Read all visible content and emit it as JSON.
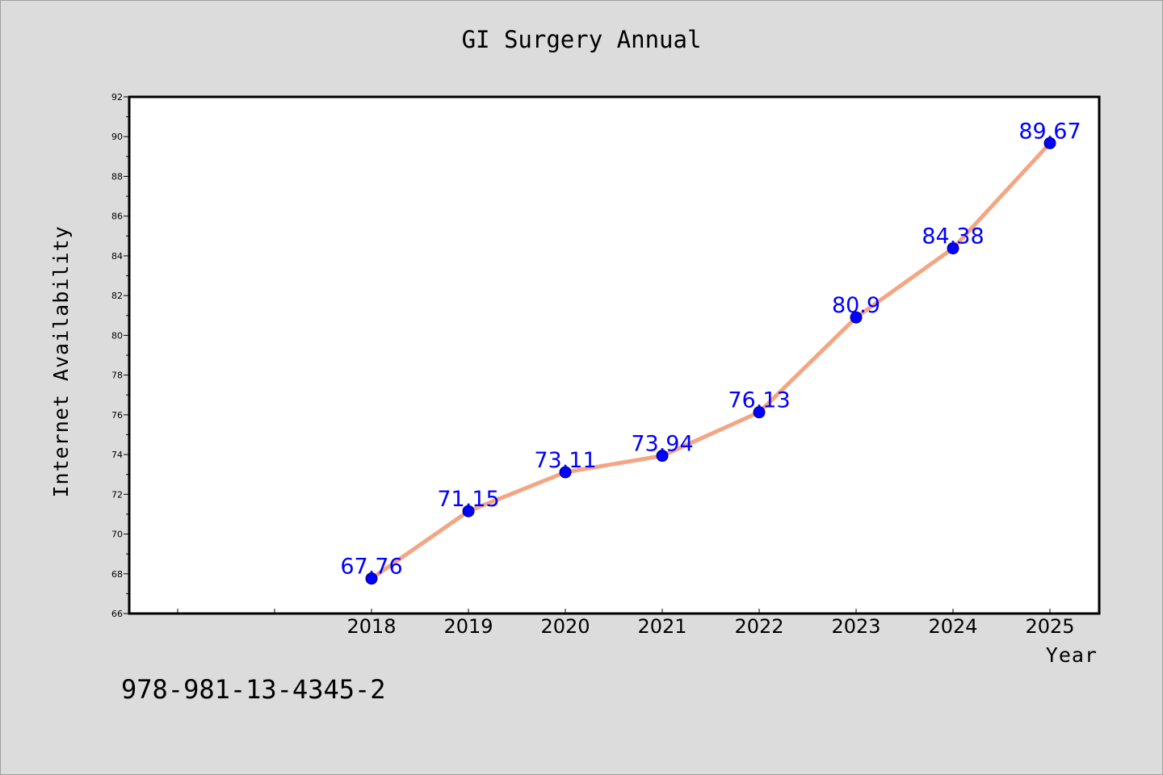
{
  "chart_data": {
    "type": "line",
    "title": "GI Surgery Annual",
    "xlabel": "Year",
    "ylabel": "Internet Availability",
    "x": [
      "2018",
      "2019",
      "2020",
      "2021",
      "2022",
      "2023",
      "2024",
      "2025"
    ],
    "series": [
      {
        "values": [
          67.76,
          71.15,
          73.11,
          73.94,
          76.13,
          80.9,
          84.38,
          89.67
        ],
        "line_color": "#f4a582",
        "marker_color": "#0000ff"
      }
    ],
    "data_labels": [
      "67.76",
      "71.15",
      "73.11",
      "73.94",
      "76.13",
      "80.9",
      "84.38",
      "89.67"
    ],
    "ylim": [
      66,
      92
    ],
    "y_ticks": [
      "66",
      "68",
      "70",
      "72",
      "74",
      "76",
      "78",
      "80",
      "82",
      "84",
      "86",
      "88",
      "90",
      "92"
    ],
    "grid": false,
    "legend": "none",
    "plot_background": "#ffffff",
    "page_background": "#dcdcdc"
  },
  "footer": {
    "isbn": "978-981-13-4345-2"
  }
}
